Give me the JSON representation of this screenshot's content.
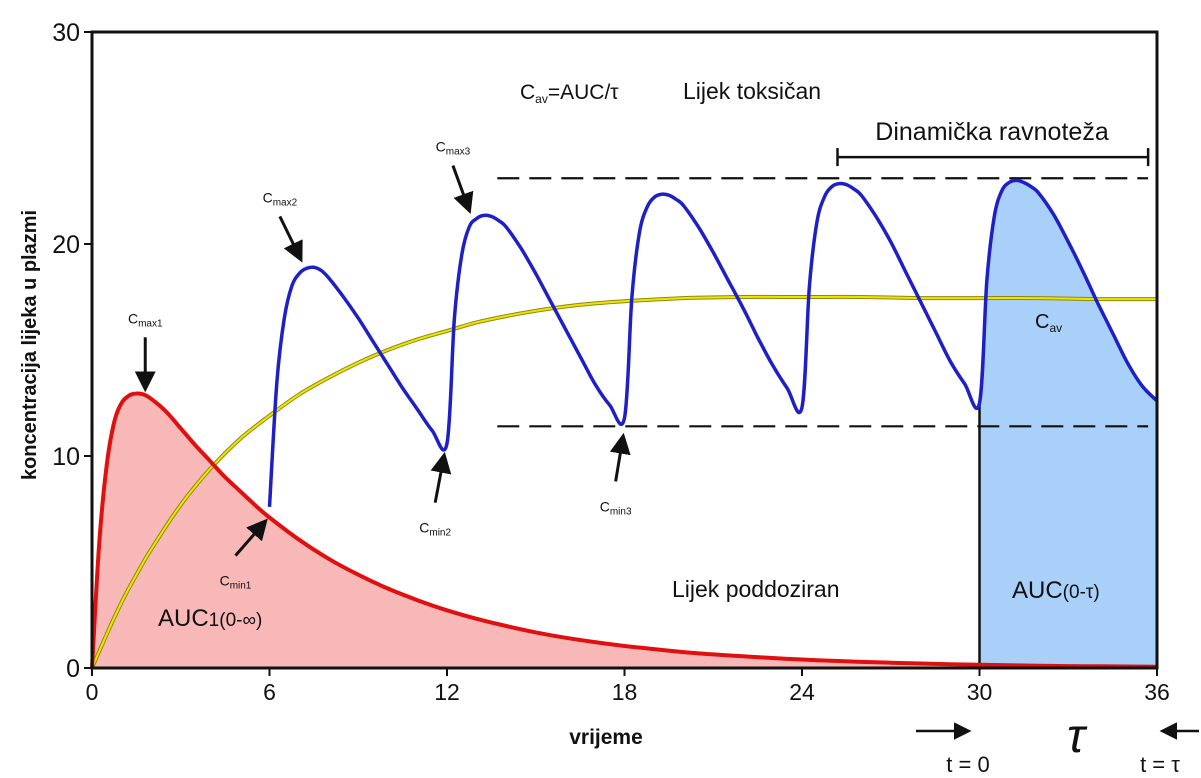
{
  "chart_data": {
    "type": "line",
    "xlabel": "vrijeme",
    "ylabel": "koncentracija lijeka u plazmi",
    "xlim": [
      0,
      36
    ],
    "ylim": [
      0,
      30
    ],
    "x_ticks": [
      0,
      6,
      12,
      18,
      24,
      30,
      36
    ],
    "y_ticks": [
      0,
      10,
      20,
      30
    ],
    "dose_interval": 6,
    "series": [
      {
        "color": "#e01010",
        "fill": "#f9b8b8",
        "x": [
          0,
          0.25,
          0.5,
          0.75,
          1,
          1.25,
          1.5,
          1.75,
          2,
          2.5,
          3,
          3.5,
          4,
          4.5,
          5,
          5.5,
          6,
          7,
          8,
          9,
          10,
          11,
          12,
          13,
          14,
          15,
          16,
          17,
          18,
          19,
          20,
          21,
          22,
          23,
          24,
          25,
          26,
          27,
          28,
          29,
          30,
          31,
          32,
          33,
          34,
          35,
          36
        ],
        "values": [
          0,
          6.0,
          9.6,
          11.6,
          12.5,
          12.85,
          12.95,
          12.9,
          12.7,
          12.1,
          11.3,
          10.5,
          9.75,
          9.0,
          8.35,
          7.7,
          7.1,
          6.05,
          5.15,
          4.4,
          3.75,
          3.2,
          2.72,
          2.32,
          1.98,
          1.68,
          1.43,
          1.22,
          1.04,
          0.89,
          0.75,
          0.64,
          0.55,
          0.47,
          0.4,
          0.34,
          0.29,
          0.25,
          0.21,
          0.18,
          0.15,
          0.13,
          0.11,
          0.09,
          0.08,
          0.07,
          0.06
        ]
      },
      {
        "color": "#1f1fc8",
        "x": [
          6,
          6.25,
          6.5,
          6.75,
          7,
          7.25,
          7.5,
          7.75,
          8,
          8.5,
          9,
          9.5,
          10,
          10.5,
          11,
          11.5,
          12,
          12.25,
          12.5,
          12.75,
          13,
          13.25,
          13.5,
          13.75,
          14,
          14.5,
          15,
          15.5,
          16,
          16.5,
          17,
          17.5,
          18,
          18.25,
          18.5,
          18.75,
          19,
          19.25,
          19.5,
          19.75,
          20,
          20.5,
          21,
          21.5,
          22,
          22.5,
          23,
          23.5,
          24,
          24.25,
          24.5,
          24.75,
          25,
          25.25,
          25.5,
          25.75,
          26,
          26.5,
          27,
          27.5,
          28,
          28.5,
          29,
          29.5,
          30,
          30.25,
          30.5,
          30.75,
          31,
          31.25,
          31.5,
          31.75,
          32,
          32.5,
          33,
          33.5,
          34,
          34.5,
          35,
          35.5,
          36
        ],
        "values": [
          7.6,
          13.5,
          16.5,
          18.0,
          18.6,
          18.85,
          18.9,
          18.75,
          18.4,
          17.5,
          16.5,
          15.4,
          14.3,
          13.2,
          12.2,
          11.2,
          10.6,
          16.5,
          19.5,
          20.8,
          21.2,
          21.35,
          21.3,
          21.1,
          20.8,
          19.8,
          18.6,
          17.3,
          16.0,
          14.7,
          13.4,
          12.4,
          11.8,
          17.5,
          20.5,
          21.7,
          22.2,
          22.35,
          22.3,
          22.1,
          21.8,
          20.8,
          19.6,
          18.3,
          17.0,
          15.6,
          14.3,
          13.2,
          12.3,
          18.0,
          21.0,
          22.2,
          22.7,
          22.85,
          22.8,
          22.6,
          22.3,
          21.3,
          20.1,
          18.7,
          17.3,
          15.9,
          14.5,
          13.4,
          12.5,
          18.3,
          21.3,
          22.5,
          22.9,
          23.0,
          22.9,
          22.7,
          22.4,
          21.4,
          20.1,
          18.7,
          17.2,
          15.8,
          14.4,
          13.3,
          12.6
        ]
      },
      {
        "color": "#f2e200",
        "x": [
          0,
          0.5,
          1,
          1.5,
          2,
          3,
          4,
          5,
          6,
          7,
          8,
          9,
          10,
          11,
          12,
          13,
          14,
          15,
          16,
          17,
          18,
          20,
          22,
          24,
          26,
          28,
          30,
          32,
          34,
          36
        ],
        "values": [
          0,
          1.6,
          3.1,
          4.4,
          5.6,
          7.7,
          9.4,
          10.8,
          11.9,
          12.9,
          13.7,
          14.4,
          15.0,
          15.5,
          15.9,
          16.3,
          16.6,
          16.85,
          17.05,
          17.2,
          17.3,
          17.45,
          17.5,
          17.5,
          17.5,
          17.45,
          17.45,
          17.45,
          17.4,
          17.4
        ]
      }
    ],
    "auc_shaded": {
      "x_from": 30,
      "x_to": 36,
      "fill": "#a8d0f8"
    },
    "reference_lines": [
      {
        "y": 23.1,
        "x_from": 13.7,
        "x_to": 35.7,
        "style": "dashed"
      },
      {
        "y": 11.4,
        "x_from": 13.7,
        "x_to": 35.7,
        "style": "dashed"
      }
    ],
    "bracket": {
      "x_from": 25.2,
      "x_to": 35.7,
      "y": 24.1,
      "label": "Dinamička ravnoteža"
    },
    "annotations": {
      "cavg_formula": "C",
      "cavg_formula_sub": "av",
      "cavg_formula_rest": "=AUC/τ",
      "toxic": "Lijek toksičan",
      "cav": "C",
      "cav_sub": "av",
      "underdosed": "Lijek poddoziran",
      "auc1": "AUC",
      "auc1_sub": "1(0-∞)",
      "auc_tau": "AUC",
      "auc_tau_sub": "(0-τ)",
      "tau": "τ",
      "t0": "t = 0",
      "ttau": "t = τ"
    },
    "marker_labels": [
      {
        "main": "C",
        "sub": "max1",
        "tip": [
          1.8,
          13.2
        ],
        "tail": [
          1.8,
          15.6
        ]
      },
      {
        "main": "C",
        "sub": "max2",
        "tip": [
          7.05,
          19.3
        ],
        "tail": [
          6.35,
          21.3
        ]
      },
      {
        "main": "C",
        "sub": "max3",
        "tip": [
          12.75,
          21.6
        ],
        "tail": [
          12.2,
          23.7
        ]
      },
      {
        "main": "C",
        "sub": "min1",
        "tip": [
          5.85,
          6.9
        ],
        "tail": [
          4.85,
          5.3
        ]
      },
      {
        "main": "C",
        "sub": "min2",
        "tip": [
          11.9,
          10.0
        ],
        "tail": [
          11.6,
          7.8
        ]
      },
      {
        "main": "C",
        "sub": "min3",
        "tip": [
          17.95,
          10.9
        ],
        "tail": [
          17.7,
          8.8
        ]
      }
    ]
  }
}
